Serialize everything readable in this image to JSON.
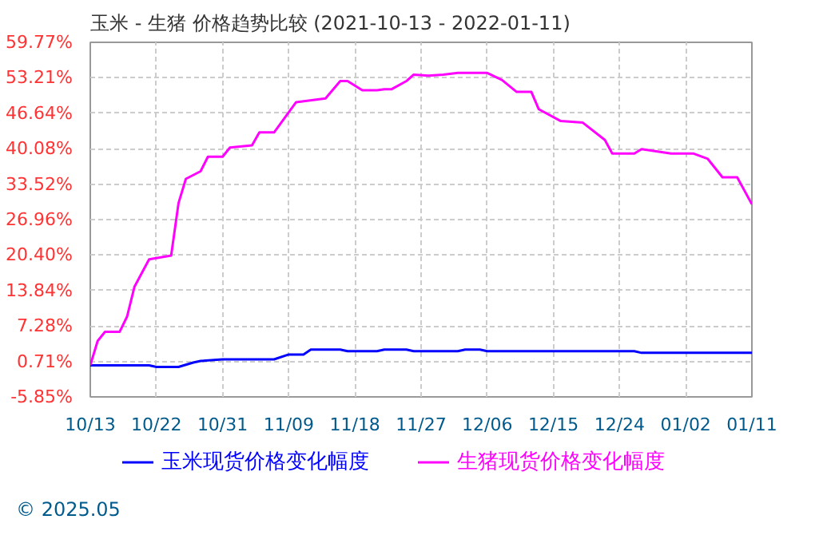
{
  "chart_data": {
    "type": "line",
    "title": "玉米 - 生猪 价格趋势比较 (2021-10-13 - 2022-01-11)",
    "x": [
      "2021-10-13",
      "2021-10-21",
      "2021-10-22",
      "2021-10-25",
      "2021-10-27",
      "2021-10-28",
      "2021-10-31",
      "2021-11-07",
      "2021-11-09",
      "2021-11-11",
      "2021-11-12",
      "2021-11-16",
      "2021-11-17",
      "2021-11-21",
      "2021-11-22",
      "2021-11-25",
      "2021-11-26",
      "2021-12-02",
      "2021-12-03",
      "2021-12-05",
      "2021-12-06",
      "2021-12-26",
      "2021-12-27",
      "2022-01-11"
    ],
    "series": [
      {
        "name": "玉米现货价格变化幅度",
        "color": "#0000ff",
        "values": [
          0.0,
          0.0,
          -0.3,
          -0.3,
          0.5,
          0.8,
          1.1,
          1.1,
          2.0,
          2.0,
          2.9,
          2.9,
          2.6,
          2.6,
          2.9,
          2.9,
          2.6,
          2.6,
          2.9,
          2.9,
          2.6,
          2.6,
          2.3,
          2.3
        ]
      },
      {
        "name": "生猪现货价格变化幅度",
        "color": "#ff00ff",
        "x": [
          "2021-10-13",
          "2021-10-14",
          "2021-10-15",
          "2021-10-17",
          "2021-10-18",
          "2021-10-19",
          "2021-10-21",
          "2021-10-24",
          "2021-10-25",
          "2021-10-26",
          "2021-10-28",
          "2021-10-29",
          "2021-10-31",
          "2021-11-01",
          "2021-11-04",
          "2021-11-05",
          "2021-11-07",
          "2021-11-10",
          "2021-11-14",
          "2021-11-16",
          "2021-11-17",
          "2021-11-19",
          "2021-11-21",
          "2021-11-22",
          "2021-11-23",
          "2021-11-25",
          "2021-11-26",
          "2021-11-28",
          "2021-11-30",
          "2021-12-02",
          "2021-12-06",
          "2021-12-08",
          "2021-12-10",
          "2021-12-12",
          "2021-12-13",
          "2021-12-16",
          "2021-12-19",
          "2021-12-22",
          "2021-12-23",
          "2021-12-26",
          "2021-12-27",
          "2021-12-31",
          "2022-01-03",
          "2022-01-05",
          "2022-01-07",
          "2022-01-09",
          "2022-01-11"
        ],
        "values": [
          0.0,
          4.5,
          6.2,
          6.2,
          9.0,
          14.5,
          19.6,
          20.3,
          30.0,
          34.5,
          35.9,
          38.6,
          38.6,
          40.3,
          40.7,
          43.1,
          43.1,
          48.7,
          49.4,
          52.6,
          52.6,
          50.9,
          50.9,
          51.1,
          51.1,
          52.6,
          53.8,
          53.6,
          53.8,
          54.1,
          54.1,
          52.8,
          50.6,
          50.6,
          47.4,
          45.2,
          44.9,
          41.7,
          39.2,
          39.2,
          40.0,
          39.2,
          39.2,
          38.2,
          34.8,
          34.8,
          29.8
        ]
      }
    ],
    "xlim": [
      "2021-10-13",
      "2022-01-11"
    ],
    "xticks": [
      {
        "value": "2021-10-13",
        "label": "10/13"
      },
      {
        "value": "2021-10-22",
        "label": "10/22"
      },
      {
        "value": "2021-10-31",
        "label": "10/31"
      },
      {
        "value": "2021-11-09",
        "label": "11/09"
      },
      {
        "value": "2021-11-18",
        "label": "11/18"
      },
      {
        "value": "2021-11-27",
        "label": "11/27"
      },
      {
        "value": "2021-12-06",
        "label": "12/06"
      },
      {
        "value": "2021-12-15",
        "label": "12/15"
      },
      {
        "value": "2021-12-24",
        "label": "12/24"
      },
      {
        "value": "2022-01-02",
        "label": "01/02"
      },
      {
        "value": "2022-01-11",
        "label": "01/11"
      }
    ],
    "ylim": [
      -5.85,
      59.77
    ],
    "yticks": [
      {
        "value": -5.85,
        "label": "-5.85%"
      },
      {
        "value": 0.71,
        "label": "0.71%"
      },
      {
        "value": 7.28,
        "label": "7.28%"
      },
      {
        "value": 13.84,
        "label": "13.84%"
      },
      {
        "value": 20.4,
        "label": "20.40%"
      },
      {
        "value": 26.96,
        "label": "26.96%"
      },
      {
        "value": 33.52,
        "label": "33.52%"
      },
      {
        "value": 40.08,
        "label": "40.08%"
      },
      {
        "value": 46.64,
        "label": "46.64%"
      },
      {
        "value": 53.21,
        "label": "53.21%"
      },
      {
        "value": 59.77,
        "label": "59.77%"
      }
    ],
    "grid": true,
    "legend": "bottom",
    "line_style": "solid",
    "marker": "none",
    "annotations": [
      "© 2025.05"
    ]
  }
}
